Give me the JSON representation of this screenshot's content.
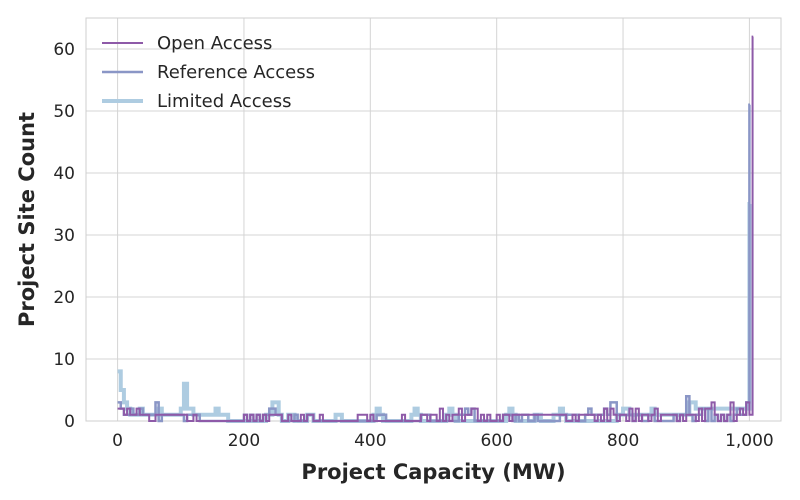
{
  "chart_data": {
    "type": "line",
    "drawstyle": "steps",
    "xlabel": "Project Capacity (MW)",
    "ylabel": "Project Site Count",
    "xlim": [
      -50,
      1050
    ],
    "ylim": [
      0,
      65
    ],
    "x_ticks": [
      0,
      200,
      400,
      600,
      800,
      1000
    ],
    "x_tick_labels": [
      "0",
      "200",
      "400",
      "600",
      "800",
      "1,000"
    ],
    "y_ticks": [
      0,
      10,
      20,
      30,
      40,
      50,
      60
    ],
    "y_tick_labels": [
      "0",
      "10",
      "20",
      "30",
      "40",
      "50",
      "60"
    ],
    "grid": true,
    "legend_position": "top-left",
    "series": [
      {
        "name": "Open Access",
        "color": "#8e5aa8",
        "line_width": 2,
        "x": [
          0,
          5,
          10,
          15,
          20,
          25,
          30,
          35,
          40,
          45,
          50,
          60,
          70,
          80,
          90,
          100,
          110,
          120,
          125,
          130,
          200,
          205,
          210,
          215,
          220,
          225,
          230,
          235,
          240,
          250,
          255,
          260,
          270,
          275,
          280,
          290,
          295,
          300,
          305,
          310,
          320,
          325,
          330,
          380,
          385,
          390,
          395,
          400,
          405,
          410,
          450,
          455,
          460,
          480,
          485,
          490,
          495,
          500,
          505,
          510,
          515,
          520,
          525,
          530,
          540,
          545,
          550,
          560,
          570,
          575,
          580,
          585,
          590,
          600,
          605,
          610,
          620,
          625,
          630,
          700,
          705,
          710,
          720,
          725,
          730,
          740,
          745,
          750,
          755,
          760,
          765,
          770,
          775,
          780,
          785,
          790,
          795,
          800,
          805,
          810,
          815,
          820,
          825,
          830,
          840,
          845,
          850,
          855,
          860,
          865,
          870,
          880,
          885,
          890,
          895,
          900,
          905,
          910,
          915,
          920,
          925,
          930,
          935,
          940,
          945,
          950,
          955,
          960,
          965,
          970,
          975,
          980,
          985,
          990,
          995,
          1000,
          1005
        ],
        "values": [
          2,
          2,
          1,
          2,
          1,
          1,
          2,
          1,
          1,
          1,
          0,
          1,
          1,
          1,
          1,
          1,
          0,
          1,
          0,
          0,
          1,
          0,
          1,
          0,
          1,
          0,
          1,
          0,
          1,
          1,
          1,
          0,
          1,
          0,
          0,
          1,
          0,
          1,
          1,
          0,
          1,
          0,
          0,
          1,
          1,
          1,
          0,
          1,
          0,
          0,
          1,
          0,
          0,
          1,
          1,
          0,
          1,
          1,
          0,
          2,
          0,
          1,
          0,
          1,
          2,
          0,
          1,
          2,
          0,
          1,
          0,
          1,
          0,
          1,
          0,
          1,
          0,
          1,
          1,
          1,
          1,
          0,
          1,
          0,
          1,
          1,
          1,
          1,
          0,
          1,
          0,
          2,
          0,
          2,
          1,
          0,
          1,
          1,
          0,
          2,
          0,
          2,
          0,
          1,
          0,
          1,
          2,
          0,
          1,
          1,
          1,
          1,
          0,
          1,
          0,
          1,
          1,
          1,
          0,
          2,
          0,
          2,
          2,
          3,
          1,
          0,
          1,
          0,
          1,
          3,
          0,
          1,
          2,
          1,
          3,
          1,
          62
        ]
      },
      {
        "name": "Reference Access",
        "color": "#8a96c6",
        "line_width": 2.5,
        "x": [
          0,
          5,
          10,
          15,
          20,
          25,
          30,
          35,
          40,
          45,
          60,
          65,
          70,
          100,
          105,
          110,
          120,
          125,
          130,
          200,
          205,
          210,
          215,
          220,
          225,
          230,
          235,
          240,
          250,
          255,
          260,
          280,
          285,
          300,
          305,
          310,
          410,
          415,
          420,
          425,
          480,
          485,
          490,
          495,
          540,
          545,
          550,
          555,
          560,
          565,
          610,
          615,
          620,
          625,
          630,
          635,
          640,
          645,
          650,
          660,
          665,
          670,
          700,
          705,
          710,
          715,
          720,
          725,
          730,
          740,
          745,
          750,
          760,
          765,
          770,
          775,
          780,
          790,
          795,
          800,
          805,
          810,
          815,
          820,
          825,
          830,
          840,
          845,
          850,
          880,
          885,
          890,
          895,
          900,
          905,
          910,
          915,
          920,
          925,
          930,
          935,
          940,
          945,
          950,
          955,
          960,
          965,
          970,
          975,
          980,
          985,
          990,
          995,
          1000
        ],
        "values": [
          3,
          2,
          1,
          1,
          2,
          1,
          1,
          2,
          1,
          1,
          3,
          0,
          1,
          1,
          0,
          1,
          1,
          1,
          0,
          1,
          0,
          1,
          0,
          1,
          0,
          1,
          1,
          2,
          1,
          1,
          0,
          1,
          0,
          1,
          1,
          0,
          1,
          1,
          1,
          0,
          1,
          1,
          1,
          0,
          1,
          1,
          2,
          1,
          2,
          0,
          1,
          1,
          1,
          0,
          1,
          0,
          1,
          1,
          0,
          1,
          0,
          0,
          1,
          1,
          1,
          1,
          1,
          1,
          0,
          1,
          2,
          1,
          1,
          1,
          2,
          1,
          3,
          1,
          1,
          1,
          1,
          1,
          0,
          1,
          1,
          0,
          1,
          1,
          0,
          1,
          0,
          1,
          1,
          4,
          1,
          0,
          1,
          1,
          2,
          0,
          2,
          0,
          1,
          0,
          1,
          0,
          1,
          0,
          1,
          2,
          1,
          1,
          3,
          51
        ]
      },
      {
        "name": "Limited Access",
        "color": "#aecce1",
        "line_width": 4,
        "x": [
          0,
          5,
          10,
          15,
          20,
          25,
          30,
          35,
          40,
          45,
          50,
          60,
          65,
          70,
          95,
          100,
          105,
          110,
          115,
          120,
          145,
          150,
          155,
          160,
          165,
          170,
          175,
          235,
          240,
          245,
          250,
          255,
          260,
          270,
          275,
          280,
          300,
          305,
          310,
          345,
          350,
          355,
          405,
          410,
          415,
          420,
          465,
          470,
          475,
          480,
          520,
          525,
          530,
          535,
          615,
          620,
          625,
          630,
          660,
          665,
          670,
          690,
          695,
          700,
          705,
          710,
          790,
          795,
          800,
          805,
          810,
          840,
          845,
          850,
          900,
          905,
          910,
          915,
          1000
        ],
        "values": [
          8,
          5,
          3,
          2,
          1,
          1,
          1,
          2,
          1,
          1,
          1,
          1,
          2,
          1,
          1,
          2,
          6,
          2,
          2,
          1,
          1,
          1,
          2,
          1,
          1,
          1,
          0,
          1,
          1,
          3,
          3,
          1,
          0,
          1,
          1,
          0,
          1,
          1,
          0,
          1,
          1,
          0,
          1,
          2,
          1,
          0,
          1,
          2,
          1,
          0,
          1,
          2,
          1,
          0,
          1,
          2,
          1,
          0,
          1,
          1,
          0,
          1,
          1,
          2,
          1,
          0,
          1,
          1,
          2,
          2,
          1,
          1,
          2,
          1,
          1,
          3,
          3,
          2,
          35
        ]
      }
    ]
  }
}
